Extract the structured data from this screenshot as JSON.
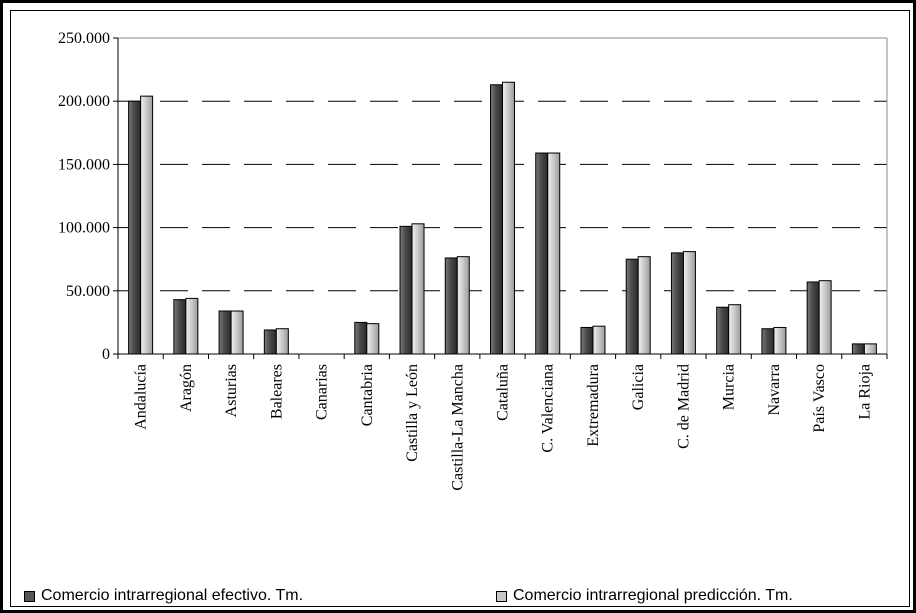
{
  "chart_data": {
    "type": "bar",
    "categories": [
      "Andalucía",
      "Aragón",
      "Asturias",
      "Baleares",
      "Canarias",
      "Cantabria",
      "Castilla y León",
      "Castilla-La Mancha",
      "Cataluña",
      "C. Valenciana",
      "Extremadura",
      "Galicia",
      "C. de Madrid",
      "Murcia",
      "Navarra",
      "País Vasco",
      "La Rioja"
    ],
    "series": [
      {
        "name": "Comercio intrarregional efectivo. Tm.",
        "color": "#555555",
        "values": [
          200000,
          43000,
          34000,
          19000,
          0,
          25000,
          101000,
          76000,
          213000,
          159000,
          21000,
          75000,
          80000,
          37000,
          20000,
          57000,
          8000
        ]
      },
      {
        "name": "Comercio intrarregional predicción. Tm.",
        "color": "#c8c8c8",
        "values": [
          204000,
          44000,
          34000,
          20000,
          0,
          24000,
          103000,
          77000,
          215000,
          159000,
          22000,
          77000,
          81000,
          39000,
          21000,
          58000,
          8000
        ]
      }
    ],
    "ylim": [
      0,
      250000
    ],
    "yticks": [
      0,
      50000,
      100000,
      150000,
      200000,
      250000
    ],
    "ytick_labels": [
      "0",
      "50.000",
      "100.000",
      "150.000",
      "200.000",
      "250.000"
    ],
    "grid": true,
    "legend_position": "bottom"
  }
}
